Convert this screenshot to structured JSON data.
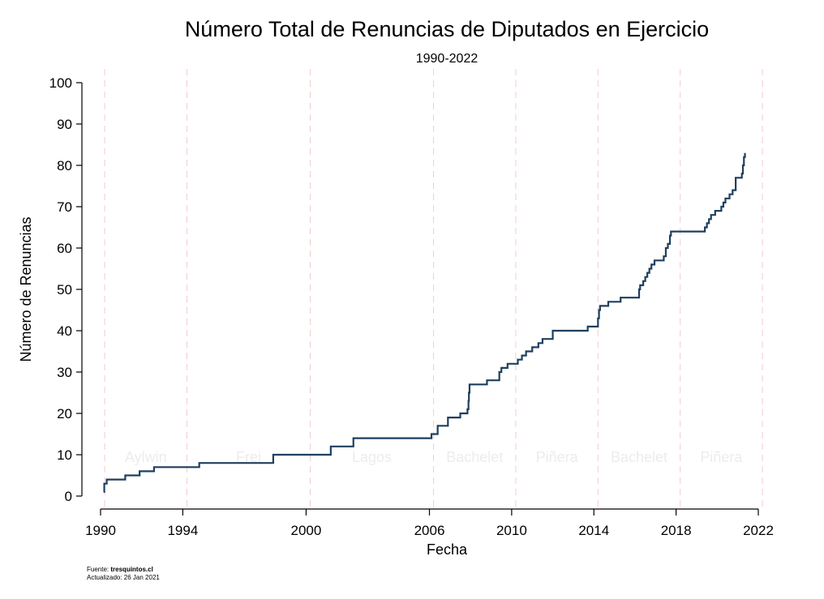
{
  "chart_data": {
    "type": "line",
    "title": "Número Total de Renuncias de Diputados en Ejercicio",
    "subtitle": "1990-2022",
    "xlabel": "Fecha",
    "ylabel": "Número de Renuncias",
    "xlim": [
      1990,
      2022
    ],
    "ylim": [
      0,
      100
    ],
    "x_ticks": [
      1990,
      1994,
      2000,
      2006,
      2010,
      2014,
      2018,
      2022
    ],
    "y_ticks": [
      0,
      10,
      20,
      30,
      40,
      50,
      60,
      70,
      80,
      90,
      100
    ],
    "grid": false,
    "period_boundaries": [
      1990.2,
      1994.2,
      2000.2,
      2006.2,
      2010.2,
      2014.2,
      2018.2,
      2022.2
    ],
    "periods": [
      {
        "label": "Aylwin",
        "start": 1990.2,
        "end": 1994.2
      },
      {
        "label": "Frei",
        "start": 1994.2,
        "end": 2000.2
      },
      {
        "label": "Lagos",
        "start": 2000.2,
        "end": 2006.2
      },
      {
        "label": "Bachelet",
        "start": 2006.2,
        "end": 2010.2
      },
      {
        "label": "Piñera",
        "start": 2010.2,
        "end": 2014.2
      },
      {
        "label": "Bachelet",
        "start": 2014.2,
        "end": 2018.2
      },
      {
        "label": "Piñera",
        "start": 2018.2,
        "end": 2022.2
      }
    ],
    "series": [
      {
        "color": "#1f3f5f",
        "step": true,
        "points": [
          [
            1990.15,
            1
          ],
          [
            1990.18,
            3
          ],
          [
            1990.3,
            4
          ],
          [
            1991.2,
            5
          ],
          [
            1991.9,
            6
          ],
          [
            1992.6,
            7
          ],
          [
            1994.8,
            8
          ],
          [
            1998.4,
            10
          ],
          [
            2001.2,
            12
          ],
          [
            2002.3,
            14
          ],
          [
            2006.1,
            15
          ],
          [
            2006.4,
            17
          ],
          [
            2006.9,
            19
          ],
          [
            2007.5,
            20
          ],
          [
            2007.85,
            21
          ],
          [
            2007.9,
            23
          ],
          [
            2007.92,
            25
          ],
          [
            2007.95,
            27
          ],
          [
            2008.8,
            28
          ],
          [
            2009.4,
            30
          ],
          [
            2009.5,
            31
          ],
          [
            2009.8,
            32
          ],
          [
            2010.3,
            33
          ],
          [
            2010.5,
            34
          ],
          [
            2010.7,
            35
          ],
          [
            2011.0,
            36
          ],
          [
            2011.3,
            37
          ],
          [
            2011.5,
            38
          ],
          [
            2012.0,
            40
          ],
          [
            2013.7,
            41
          ],
          [
            2014.2,
            43
          ],
          [
            2014.25,
            45
          ],
          [
            2014.3,
            46
          ],
          [
            2014.5,
            46
          ],
          [
            2014.7,
            47
          ],
          [
            2015.3,
            48
          ],
          [
            2016.2,
            50
          ],
          [
            2016.25,
            51
          ],
          [
            2016.4,
            52
          ],
          [
            2016.5,
            53
          ],
          [
            2016.6,
            54
          ],
          [
            2016.7,
            55
          ],
          [
            2016.8,
            56
          ],
          [
            2016.95,
            57
          ],
          [
            2017.4,
            58
          ],
          [
            2017.5,
            60
          ],
          [
            2017.6,
            61
          ],
          [
            2017.7,
            63
          ],
          [
            2017.75,
            64
          ],
          [
            2019.4,
            65
          ],
          [
            2019.5,
            66
          ],
          [
            2019.6,
            67
          ],
          [
            2019.7,
            68
          ],
          [
            2019.9,
            69
          ],
          [
            2020.2,
            70
          ],
          [
            2020.3,
            71
          ],
          [
            2020.4,
            72
          ],
          [
            2020.6,
            73
          ],
          [
            2020.75,
            74
          ],
          [
            2020.9,
            77
          ],
          [
            2021.2,
            78
          ],
          [
            2021.25,
            80
          ],
          [
            2021.3,
            82
          ],
          [
            2021.35,
            83
          ]
        ]
      }
    ]
  },
  "footer": {
    "source_label": "Fuente:",
    "source_value": "tresquintos.cl",
    "updated": "Actualizado: 26 Jan 2021"
  }
}
